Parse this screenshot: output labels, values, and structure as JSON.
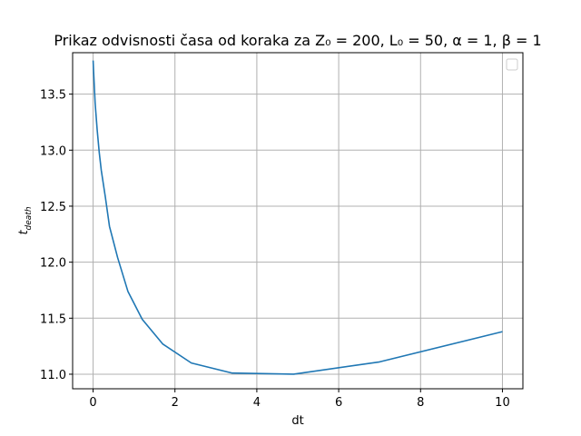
{
  "chart_data": {
    "type": "line",
    "title": "Prikaz odvisnosti časa od koraka za Z₀ = 200, L₀ = 50, α = 1, β = 1",
    "xlabel": "dt",
    "ylabel": "t_death",
    "ylabel_main": "t",
    "ylabel_sub": "death",
    "xlim": [
      -0.5,
      10.5
    ],
    "ylim": [
      10.87,
      13.87
    ],
    "xticks": [
      0,
      2,
      4,
      6,
      8,
      10
    ],
    "xtick_labels": [
      "0",
      "2",
      "4",
      "6",
      "8",
      "10"
    ],
    "yticks": [
      11.0,
      11.5,
      12.0,
      12.5,
      13.0,
      13.5
    ],
    "ytick_labels": [
      "11.0",
      "11.5",
      "12.0",
      "12.5",
      "13.0",
      "13.5"
    ],
    "grid": true,
    "legend": "top-right (empty)",
    "series": [
      {
        "color": "#1f77b4",
        "x": [
          0.001,
          0.01,
          0.05,
          0.1,
          0.15,
          0.2,
          0.3,
          0.4,
          0.6,
          0.85,
          1.2,
          1.7,
          2.4,
          3.4,
          4.9,
          7.0,
          10.0
        ],
        "values": [
          13.8,
          13.72,
          13.42,
          13.18,
          12.98,
          12.82,
          12.58,
          12.32,
          12.04,
          11.74,
          11.49,
          11.27,
          11.1,
          11.01,
          11.0,
          11.11,
          11.38
        ]
      }
    ]
  }
}
